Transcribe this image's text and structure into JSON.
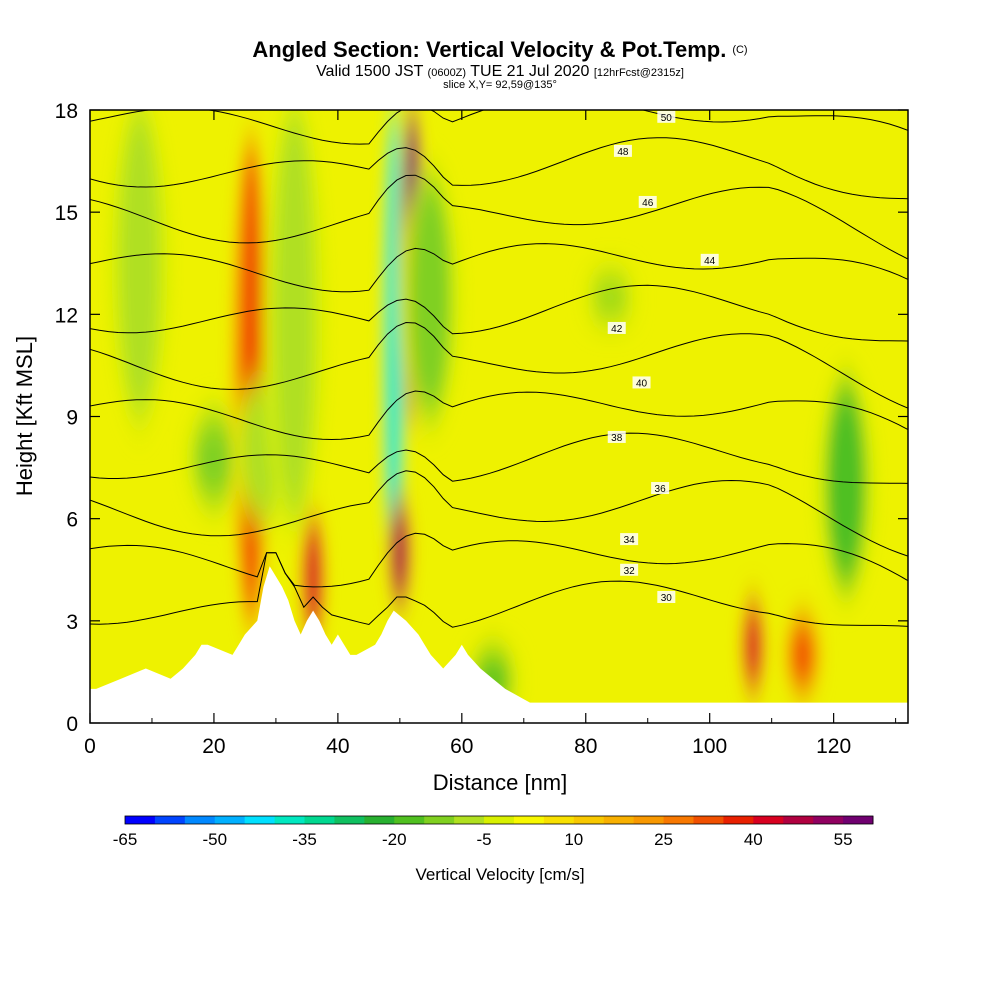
{
  "chart_data": {
    "type": "heatmap",
    "title": "Angled Section: Vertical Velocity & Pot.Temp.",
    "title_suffix": "(C)",
    "subtitle_parts": [
      "Valid 1500 JST",
      "(0600Z)",
      "TUE 21 Jul 2020",
      "[12hrFcst@2315z]"
    ],
    "slice_label": "slice X,Y= 92,59@135°",
    "xlabel": "Distance [nm]",
    "ylabel": "Height [Kft MSL]",
    "xlim": [
      0,
      132
    ],
    "ylim": [
      0,
      18
    ],
    "x_ticks": [
      0,
      20,
      40,
      60,
      80,
      100,
      120
    ],
    "y_ticks": [
      0,
      3,
      6,
      9,
      12,
      15,
      18
    ],
    "grid": false,
    "colorbar": {
      "title": "Vertical Velocity [cm/s]",
      "min": -65,
      "step": 5,
      "tick_labels": [
        "-65",
        "-50",
        "-35",
        "-20",
        "-5",
        "10",
        "25",
        "40",
        "55"
      ],
      "colors": [
        "#0000ff",
        "#0044ff",
        "#0088ff",
        "#00b0ff",
        "#00e0ff",
        "#00e8c0",
        "#00d890",
        "#10c060",
        "#28b030",
        "#50c020",
        "#80d020",
        "#b0e020",
        "#d8f000",
        "#f8f800",
        "#f8e000",
        "#f8c800",
        "#f8b000",
        "#f89800",
        "#f87800",
        "#f05000",
        "#e82000",
        "#d80020",
        "#b00040",
        "#900060",
        "#700070"
      ]
    },
    "vertical_velocity_features": [
      {
        "x": 8,
        "z_bottom": 9,
        "z_top": 18,
        "value": -10
      },
      {
        "x": 20,
        "z_bottom": 6.5,
        "z_top": 9,
        "value": -15
      },
      {
        "x": 26,
        "z_bottom": 3,
        "z_top": 17,
        "value": 30
      },
      {
        "x": 28,
        "z_bottom": 6,
        "z_top": 10,
        "value": -10
      },
      {
        "x": 33,
        "z_bottom": 6,
        "z_top": 18,
        "value": -10
      },
      {
        "x": 36,
        "z_bottom": 2.5,
        "z_top": 6,
        "value": 40
      },
      {
        "x": 49,
        "z_bottom": 4,
        "z_top": 18,
        "value": -40
      },
      {
        "x": 52,
        "z_bottom": 9,
        "z_top": 18,
        "value": 55
      },
      {
        "x": 50,
        "z_bottom": 3.5,
        "z_top": 6.5,
        "value": 45
      },
      {
        "x": 55,
        "z_bottom": 9,
        "z_top": 16,
        "value": -15
      },
      {
        "x": 65,
        "z_bottom": 0.5,
        "z_top": 2,
        "value": -20
      },
      {
        "x": 84,
        "z_bottom": 12,
        "z_top": 13,
        "value": -15
      },
      {
        "x": 107,
        "z_bottom": 1,
        "z_top": 3.5,
        "value": 40
      },
      {
        "x": 115,
        "z_bottom": 1,
        "z_top": 3,
        "value": 30
      },
      {
        "x": 122,
        "z_bottom": 4,
        "z_top": 10,
        "value": -20
      }
    ],
    "potential_temperature_contours": [
      {
        "value": 30,
        "label": "30",
        "label_x": 93,
        "label_z": 3.7
      },
      {
        "value": 32,
        "label": "32",
        "label_x": 87,
        "label_z": 4.5
      },
      {
        "value": 34,
        "label": "34",
        "label_x": 87,
        "label_z": 5.4
      },
      {
        "value": 36,
        "label": "36",
        "label_x": 92,
        "label_z": 6.9
      },
      {
        "value": 38,
        "label": "38",
        "label_x": 85,
        "label_z": 8.4
      },
      {
        "value": 40,
        "label": "40",
        "label_x": 89,
        "label_z": 10.0
      },
      {
        "value": 42,
        "label": "42",
        "label_x": 85,
        "label_z": 11.6
      },
      {
        "value": 44,
        "label": "44",
        "label_x": 100,
        "label_z": 13.6
      },
      {
        "value": 46,
        "label": "46",
        "label_x": 90,
        "label_z": 15.3
      },
      {
        "value": 48,
        "label": "48",
        "label_x": 86,
        "label_z": 16.8
      },
      {
        "value": 50,
        "label": "50",
        "label_x": 93,
        "label_z": 17.8
      }
    ],
    "terrain": {
      "x": [
        0,
        1,
        5,
        5,
        9,
        9,
        13,
        13,
        15,
        15,
        17,
        17,
        18,
        18,
        19,
        19,
        23,
        23,
        24,
        24,
        25,
        25,
        27,
        27,
        28,
        28,
        29,
        29,
        31,
        31,
        32,
        32,
        33,
        33,
        34,
        34,
        35,
        35,
        36,
        36,
        37,
        37,
        38,
        38,
        39,
        39,
        40,
        40,
        41,
        41,
        42,
        42,
        43,
        43,
        46,
        46,
        47,
        47,
        48,
        48,
        49,
        49,
        51,
        51,
        53,
        53,
        54,
        54,
        55,
        55,
        57,
        57,
        59,
        59,
        60,
        60,
        61,
        61,
        63,
        63,
        65,
        65,
        67,
        67,
        71,
        71,
        132
      ],
      "z": [
        1.0,
        1.0,
        1.3,
        1.3,
        1.6,
        1.6,
        1.3,
        1.3,
        1.6,
        1.6,
        2.0,
        2.0,
        2.3,
        2.3,
        2.3,
        2.3,
        2.0,
        2.0,
        2.3,
        2.3,
        2.6,
        2.6,
        3.0,
        3.0,
        4.0,
        4.0,
        4.6,
        4.6,
        4.0,
        4.0,
        3.6,
        3.6,
        3.0,
        3.0,
        2.6,
        2.6,
        3.0,
        3.0,
        3.3,
        3.3,
        3.0,
        3.0,
        2.6,
        2.6,
        2.3,
        2.3,
        2.6,
        2.6,
        2.3,
        2.3,
        2.0,
        2.0,
        2.0,
        2.0,
        2.3,
        2.3,
        2.6,
        2.6,
        3.0,
        3.0,
        3.3,
        3.3,
        3.0,
        3.0,
        2.6,
        2.6,
        2.3,
        2.3,
        2.0,
        2.0,
        1.6,
        1.6,
        2.0,
        2.0,
        2.3,
        2.3,
        2.0,
        2.0,
        1.6,
        1.6,
        1.3,
        1.3,
        1.0,
        1.0,
        0.6,
        0.6,
        0.6
      ]
    }
  }
}
